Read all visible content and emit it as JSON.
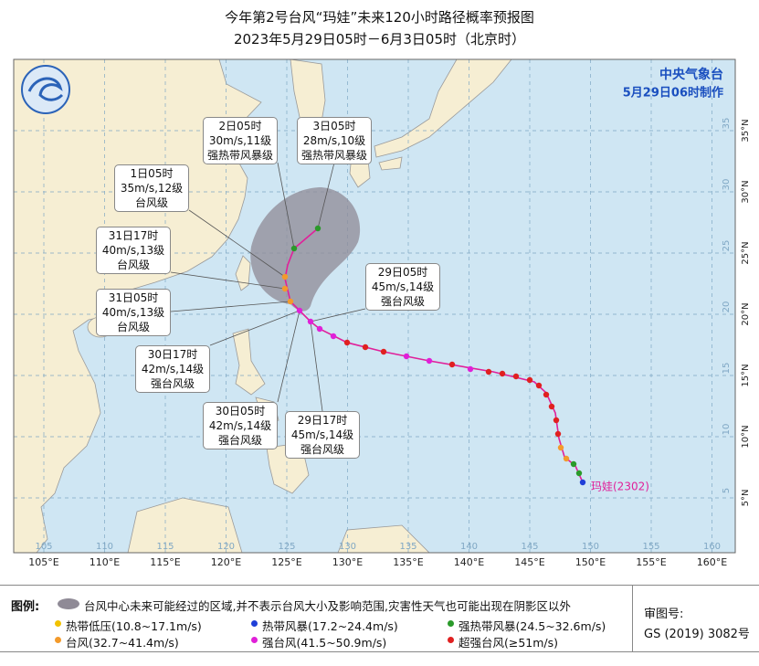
{
  "header": {
    "title": "今年第2号台风“玛娃”未来120小时路径概率预报图",
    "subtitle": "2023年5月29日05时－6月3日05时（北京时）"
  },
  "agency": {
    "name": "中央气象台",
    "issued": "5月29日06时制作"
  },
  "typhoon_label": "玛娃(2302)",
  "callouts": [
    {
      "time": "2日05时",
      "wind": "30m/s,11级",
      "level": "强热带风暴级"
    },
    {
      "time": "3日05时",
      "wind": "28m/s,10级",
      "level": "强热带风暴级"
    },
    {
      "time": "1日05时",
      "wind": "35m/s,12级",
      "level": "台风级"
    },
    {
      "time": "31日17时",
      "wind": "40m/s,13级",
      "level": "台风级"
    },
    {
      "time": "29日05时",
      "wind": "45m/s,14级",
      "level": "强台风级"
    },
    {
      "time": "31日05时",
      "wind": "40m/s,13级",
      "level": "台风级"
    },
    {
      "time": "30日17时",
      "wind": "42m/s,14级",
      "level": "强台风级"
    },
    {
      "time": "30日05时",
      "wind": "42m/s,14级",
      "level": "强台风级"
    },
    {
      "time": "29日17时",
      "wind": "45m/s,14级",
      "level": "强台风级"
    }
  ],
  "map": {
    "lon_labels": [
      "105°E",
      "110°E",
      "115°E",
      "120°E",
      "125°E",
      "130°E",
      "135°E",
      "140°E",
      "145°E",
      "150°E",
      "155°E",
      "160°E"
    ],
    "lat_labels": [
      "5°N",
      "10°N",
      "15°N",
      "20°N",
      "25°N",
      "30°N",
      "35°N"
    ],
    "grid_lon": [
      "105",
      "110",
      "115",
      "120",
      "125",
      "130",
      "135",
      "140",
      "145",
      "150",
      "155",
      "160"
    ],
    "grid_lat": [
      "5",
      "10",
      "15",
      "20",
      "25",
      "30",
      "35"
    ]
  },
  "legend": {
    "title": "图例:",
    "cone_note": "台风中心未来可能经过的区域,并不表示台风大小及影响范围,灾害性天气也可能出现在阴影区以外",
    "items": [
      {
        "name": "热带低压(10.8~17.1m/s)",
        "color": "#f2c200"
      },
      {
        "name": "热带风暴(17.2~24.4m/s)",
        "color": "#1f3fd8"
      },
      {
        "name": "强热带风暴(24.5~32.6m/s)",
        "color": "#2a9a2a"
      },
      {
        "name": "台风(32.7~41.4m/s)",
        "color": "#f39a2b"
      },
      {
        "name": "强台风(41.5~50.9m/s)",
        "color": "#e020d8"
      },
      {
        "name": "超强台风(≥51m/s)",
        "color": "#e02020"
      }
    ]
  },
  "approval": {
    "label": "审图号:",
    "number": "GS (2019) 3082号"
  }
}
